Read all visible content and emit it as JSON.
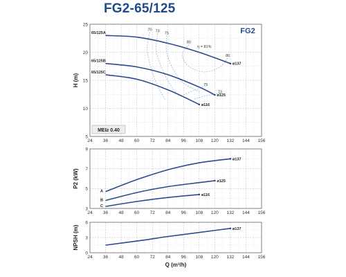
{
  "title": "FG2-65/125",
  "chart_data": [
    {
      "type": "line",
      "name": "head",
      "badge": "FG2",
      "ylabel": "H (m)",
      "xlim": [
        24,
        156
      ],
      "ylim": [
        5,
        25
      ],
      "yticks": [
        5,
        10,
        15,
        20,
        25
      ],
      "series": [
        {
          "name": "65/125A",
          "diameter": "ø137",
          "x": [
            36,
            60,
            84,
            108,
            132
          ],
          "y": [
            23.0,
            22.7,
            21.6,
            20.0,
            18.0
          ]
        },
        {
          "name": "65/125B",
          "diameter": "ø125",
          "x": [
            36,
            60,
            84,
            108,
            120
          ],
          "y": [
            18.0,
            17.4,
            16.0,
            13.8,
            12.4
          ]
        },
        {
          "name": "65/125C",
          "diameter": "ø116",
          "x": [
            36,
            60,
            84,
            108
          ],
          "y": [
            16.0,
            15.2,
            13.3,
            10.7
          ]
        }
      ],
      "efficiency": {
        "prefix": "η = ",
        "labels": [
          {
            "text": "70",
            "x": 70,
            "y": 23.8
          },
          {
            "text": "73",
            "x": 76,
            "y": 23.6
          },
          {
            "text": "75",
            "x": 83,
            "y": 23.2
          },
          {
            "text": "80",
            "x": 100,
            "y": 21.6
          },
          {
            "text": "81%",
            "x": 112,
            "y": 20.8
          },
          {
            "text": "80",
            "x": 130,
            "y": 19.2
          },
          {
            "text": "75",
            "x": 113,
            "y": 14.0
          },
          {
            "text": "73",
            "x": 124,
            "y": 12.7
          }
        ]
      },
      "mei": "MEI≥ 0.40"
    },
    {
      "type": "line",
      "name": "power",
      "ylabel": "P2 (kW)",
      "xlim": [
        24,
        156
      ],
      "ylim": [
        3,
        9
      ],
      "yticks": [
        3,
        5,
        7,
        9
      ],
      "series": [
        {
          "name": "A",
          "diameter": "ø137",
          "x": [
            36,
            60,
            84,
            108,
            132
          ],
          "y": [
            4.7,
            5.9,
            6.9,
            7.6,
            8.0
          ]
        },
        {
          "name": "B",
          "diameter": "ø125",
          "x": [
            36,
            60,
            84,
            108,
            120
          ],
          "y": [
            3.8,
            4.6,
            5.2,
            5.6,
            5.8
          ]
        },
        {
          "name": "C",
          "diameter": "ø116",
          "x": [
            36,
            60,
            84,
            108
          ],
          "y": [
            3.2,
            3.7,
            4.1,
            4.4
          ]
        }
      ]
    },
    {
      "type": "line",
      "name": "npsh",
      "ylabel": "NPSH (m)",
      "xlabel": "Q (m³/h)",
      "xlim": [
        24,
        156
      ],
      "ylim": [
        0,
        6
      ],
      "yticks": [
        0,
        3,
        6
      ],
      "xticks": [
        24,
        36,
        48,
        60,
        72,
        84,
        96,
        108,
        120,
        132,
        144,
        156
      ],
      "series": [
        {
          "name": "",
          "diameter": "ø137",
          "x": [
            36,
            60,
            84,
            108,
            132
          ],
          "y": [
            1.5,
            2.3,
            3.2,
            4.0,
            4.8
          ]
        }
      ]
    }
  ]
}
